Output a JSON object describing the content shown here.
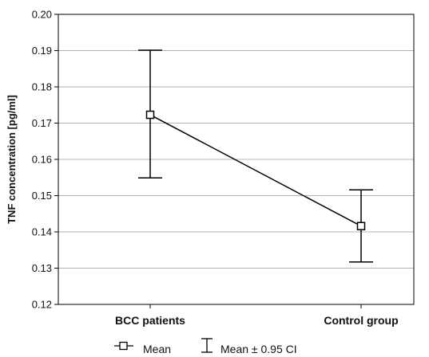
{
  "chart_data": {
    "type": "line",
    "categories": [
      "BCC patients",
      "Control group"
    ],
    "series": [
      {
        "name": "Mean",
        "values": [
          0.1723,
          0.1416
        ],
        "ci_lower": [
          0.1549,
          0.1317
        ],
        "ci_upper": [
          0.1901,
          0.1516
        ]
      }
    ],
    "ylabel": "TNF concentration [pg/ml]",
    "xlabel": "",
    "ylim": [
      0.12,
      0.2
    ],
    "yticks": [
      "0.20",
      "0.19",
      "0.18",
      "0.17",
      "0.16",
      "0.15",
      "0.14",
      "0.13",
      "0.12"
    ],
    "grid": true,
    "legend": {
      "position": "bottom",
      "items": [
        "Mean",
        "Mean ± 0.95 CI"
      ]
    }
  }
}
